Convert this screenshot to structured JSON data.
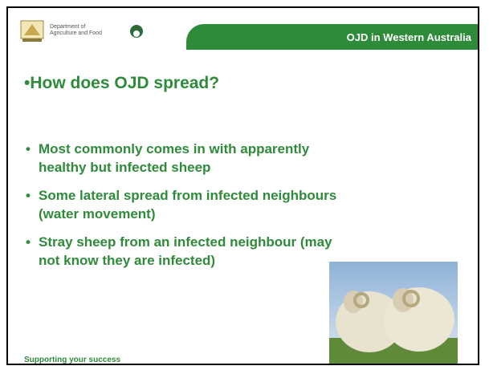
{
  "header": {
    "org_name": "Department of Agriculture and Food",
    "tab_title": "OJD in Western Australia"
  },
  "title": "How does OJD spread?",
  "bullets": [
    [
      "Most commonly comes in with apparently",
      "healthy but infected sheep"
    ],
    [
      "Some lateral spread from infected neighbours",
      "(water movement)"
    ],
    [
      "Stray sheep from an infected neighbour (may",
      "not know they are infected)"
    ]
  ],
  "footer": "Supporting your success"
}
